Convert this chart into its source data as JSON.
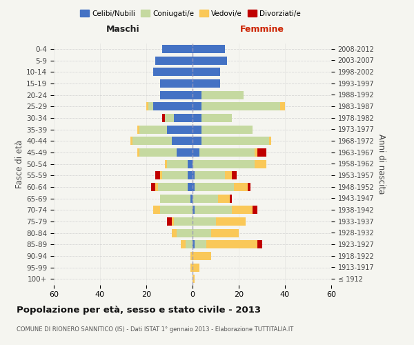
{
  "age_groups": [
    "100+",
    "95-99",
    "90-94",
    "85-89",
    "80-84",
    "75-79",
    "70-74",
    "65-69",
    "60-64",
    "55-59",
    "50-54",
    "45-49",
    "40-44",
    "35-39",
    "30-34",
    "25-29",
    "20-24",
    "15-19",
    "10-14",
    "5-9",
    "0-4"
  ],
  "birth_years": [
    "≤ 1912",
    "1913-1917",
    "1918-1922",
    "1923-1927",
    "1928-1932",
    "1933-1937",
    "1938-1942",
    "1943-1947",
    "1948-1952",
    "1953-1957",
    "1958-1962",
    "1963-1967",
    "1968-1972",
    "1973-1977",
    "1978-1982",
    "1983-1987",
    "1988-1992",
    "1993-1997",
    "1998-2002",
    "2003-2007",
    "2008-2012"
  ],
  "male_celibe": [
    0,
    0,
    0,
    0,
    0,
    0,
    0,
    1,
    2,
    2,
    2,
    7,
    9,
    11,
    8,
    17,
    14,
    14,
    17,
    16,
    13
  ],
  "male_coniugato": [
    0,
    0,
    0,
    3,
    7,
    8,
    14,
    13,
    13,
    11,
    9,
    16,
    17,
    12,
    4,
    2,
    0,
    0,
    0,
    0,
    0
  ],
  "male_vedovo": [
    0,
    1,
    1,
    2,
    2,
    1,
    3,
    0,
    1,
    1,
    1,
    1,
    1,
    1,
    0,
    1,
    0,
    0,
    0,
    0,
    0
  ],
  "male_divorziato": [
    0,
    0,
    0,
    0,
    0,
    2,
    0,
    0,
    2,
    2,
    0,
    0,
    0,
    0,
    1,
    0,
    0,
    0,
    0,
    0,
    0
  ],
  "female_nubile": [
    0,
    0,
    0,
    1,
    0,
    0,
    1,
    0,
    1,
    1,
    0,
    3,
    4,
    4,
    4,
    4,
    4,
    12,
    12,
    15,
    14
  ],
  "female_coniugata": [
    0,
    0,
    0,
    5,
    8,
    10,
    16,
    11,
    17,
    13,
    27,
    24,
    29,
    22,
    13,
    34,
    18,
    0,
    0,
    0,
    0
  ],
  "female_vedova": [
    1,
    3,
    8,
    22,
    12,
    13,
    9,
    5,
    6,
    3,
    5,
    1,
    1,
    0,
    0,
    2,
    0,
    0,
    0,
    0,
    0
  ],
  "female_divorziata": [
    0,
    0,
    0,
    2,
    0,
    0,
    2,
    1,
    1,
    2,
    0,
    4,
    0,
    0,
    0,
    0,
    0,
    0,
    0,
    0,
    0
  ],
  "colors_celibe": "#4472C4",
  "colors_coniugato": "#C5D9A0",
  "colors_vedovo": "#FAC858",
  "colors_divorziato": "#C00000",
  "xlim": 60,
  "title": "Popolazione per età, sesso e stato civile - 2013",
  "subtitle": "COMUNE DI RIONERO SANNITICO (IS) - Dati ISTAT 1° gennaio 2013 - Elaborazione TUTTITALIA.IT",
  "ylabel_left": "Fasce di età",
  "ylabel_right": "Anni di nascita",
  "label_maschi": "Maschi",
  "label_femmine": "Femmine",
  "bg_color": "#f5f5f0",
  "legend_celibe": "Celibi/Nubili",
  "legend_coniugato": "Coniugati/e",
  "legend_vedovo": "Vedovi/e",
  "legend_divorziato": "Divorziati/e"
}
